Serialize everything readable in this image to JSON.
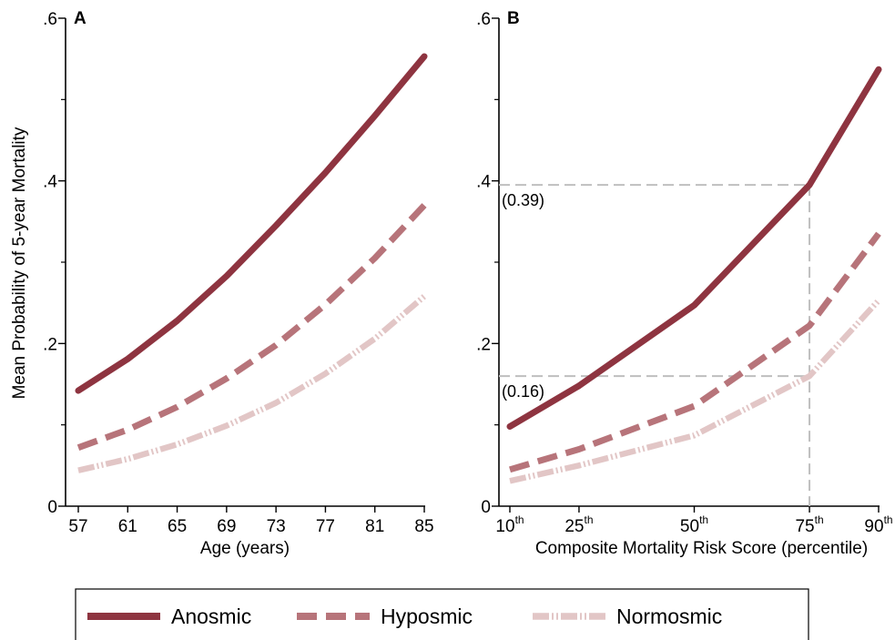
{
  "colors": {
    "Anosmic": "#8e3440",
    "Hyposmic": "#b7747a",
    "Normosmic": "#e2c6c6",
    "reference": "#bfbfbf"
  },
  "shared": {
    "ylabel": "Mean Probability of 5-year Mortality",
    "legend": [
      {
        "name": "Anosmic",
        "style": "solid"
      },
      {
        "name": "Hyposmic",
        "style": "dashed"
      },
      {
        "name": "Normosmic",
        "style": "dash-dot"
      }
    ]
  },
  "chart_data": [
    {
      "type": "line",
      "panel_label": "A",
      "xlabel": "Age (years)",
      "x": [
        57,
        61,
        65,
        69,
        73,
        77,
        81,
        85
      ],
      "xlim": [
        57,
        85
      ],
      "xticks": [
        "57",
        "61",
        "65",
        "69",
        "73",
        "77",
        "81",
        "85"
      ],
      "ylim": [
        0,
        0.6
      ],
      "yticks": [
        ".6",
        ".4",
        ".2",
        "0"
      ],
      "series": [
        {
          "name": "Anosmic",
          "values": [
            0.142,
            0.181,
            0.228,
            0.283,
            0.345,
            0.41,
            0.48,
            0.553
          ]
        },
        {
          "name": "Hyposmic",
          "values": [
            0.072,
            0.094,
            0.122,
            0.157,
            0.198,
            0.248,
            0.305,
            0.37
          ]
        },
        {
          "name": "Normosmic",
          "values": [
            0.044,
            0.058,
            0.076,
            0.099,
            0.127,
            0.163,
            0.206,
            0.258
          ]
        }
      ]
    },
    {
      "type": "line",
      "panel_label": "B",
      "xlabel": "Composite Mortality Risk Score (percentile)",
      "x": [
        10,
        25,
        50,
        75,
        90
      ],
      "xlim": [
        10,
        90
      ],
      "xticks": [
        "10",
        "25",
        "50",
        "75",
        "90"
      ],
      "xtick_suffix": "th",
      "ylim": [
        0,
        0.6
      ],
      "yticks": [
        ".6",
        ".4",
        ".2",
        "0"
      ],
      "series": [
        {
          "name": "Anosmic",
          "values": [
            0.098,
            0.148,
            0.247,
            0.395,
            0.537
          ]
        },
        {
          "name": "Hyposmic",
          "values": [
            0.045,
            0.07,
            0.123,
            0.222,
            0.335
          ]
        },
        {
          "name": "Normosmic",
          "values": [
            0.031,
            0.05,
            0.087,
            0.16,
            0.253
          ]
        }
      ],
      "reference_lines": [
        {
          "x": 75,
          "y": 0.395,
          "label": "(0.39)"
        },
        {
          "x": 75,
          "y": 0.16,
          "label": "(0.16)"
        }
      ]
    }
  ]
}
